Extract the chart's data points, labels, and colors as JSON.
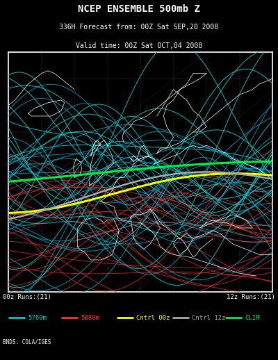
{
  "title_line1": "NCEP ENSEMBLE 500mb Z",
  "title_line2": "336H Forecast from: 00Z Sat SEP,20 2008",
  "title_line3": "Valid time: 00Z Sat OCT,04 2008",
  "footer": "BNDS: COLA/IGES",
  "legend_left": "00z Runs:(21)",
  "legend_right": "12z Runs:(21)",
  "legend_items": [
    {
      "label": "5760m",
      "color": "#00cccc"
    },
    {
      "label": "5880m",
      "color": "#ff3333"
    },
    {
      "label": "Cntrl 00z",
      "color": "#ffff00"
    },
    {
      "label": "Cntrl 12z",
      "color": "#aaaaaa"
    },
    {
      "label": "CLIM",
      "color": "#00ee44"
    }
  ],
  "bg_color": "#000000",
  "map_bg": "#000000",
  "map_border": "#ffffff",
  "title_color": "#ffffff",
  "fig_width": 4.0,
  "fig_height": 5.18,
  "fig_dpi": 100
}
